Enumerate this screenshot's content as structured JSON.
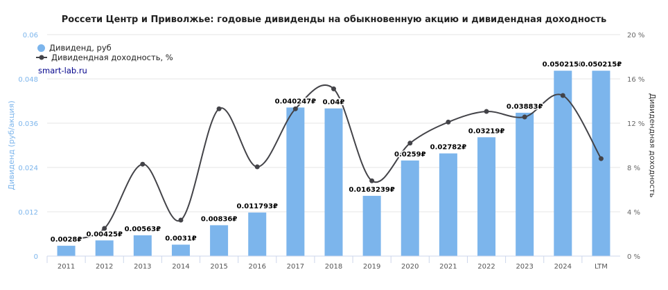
{
  "chart_data": {
    "type": "bar+line",
    "title": "Россети Центр и Приволжье: годовые дивиденды на обыкновенную акцию и дивидендная доходность",
    "categories": [
      "2011",
      "2012",
      "2013",
      "2014",
      "2015",
      "2016",
      "2017",
      "2018",
      "2019",
      "2020",
      "2021",
      "2022",
      "2023",
      "2024",
      "LTM"
    ],
    "series": [
      {
        "name": "Дивиденд, руб",
        "type": "bar",
        "axis": "left",
        "color": "#7cb5ec",
        "values": [
          0.0028,
          0.00425,
          0.00563,
          0.0031,
          0.00836,
          0.011793,
          0.040247,
          0.04,
          0.0163239,
          0.0259,
          0.02782,
          0.03219,
          0.03883,
          0.050215,
          0.050215
        ],
        "labels": [
          "0.0028₽",
          "0.00425₽",
          "0.00563₽",
          "0.0031₽",
          "0.00836₽",
          "0.011793₽",
          "0.040247₽",
          "0.04₽",
          "0.0163239₽",
          "0.0259₽",
          "0.02782₽",
          "0.03219₽",
          "0.03883₽",
          "0.050215₽",
          "0.050215₽"
        ]
      },
      {
        "name": "Дивидендная доходность, %",
        "type": "line",
        "axis": "right",
        "color": "#434348",
        "values": [
          1.5,
          2.5,
          8.3,
          3.25,
          13.3,
          8.06,
          13.3,
          15.1,
          6.8,
          10.2,
          12.1,
          13.06,
          12.56,
          14.5,
          8.8
        ]
      }
    ],
    "y_left": {
      "label": "Дивиденд (руб/акция)",
      "range": [
        0,
        0.06
      ],
      "ticks": [
        "0",
        "0.012",
        "0.024",
        "0.036",
        "0.048",
        "0.06"
      ],
      "color": "#7cb5ec"
    },
    "y_right": {
      "label": "Дивидендная доходность",
      "range": [
        0,
        20
      ],
      "ticks": [
        "0 %",
        "4 %",
        "8 %",
        "12 %",
        "16 %",
        "20 %"
      ]
    },
    "grid": true,
    "legend": "top-left"
  },
  "source": "smart-lab.ru"
}
